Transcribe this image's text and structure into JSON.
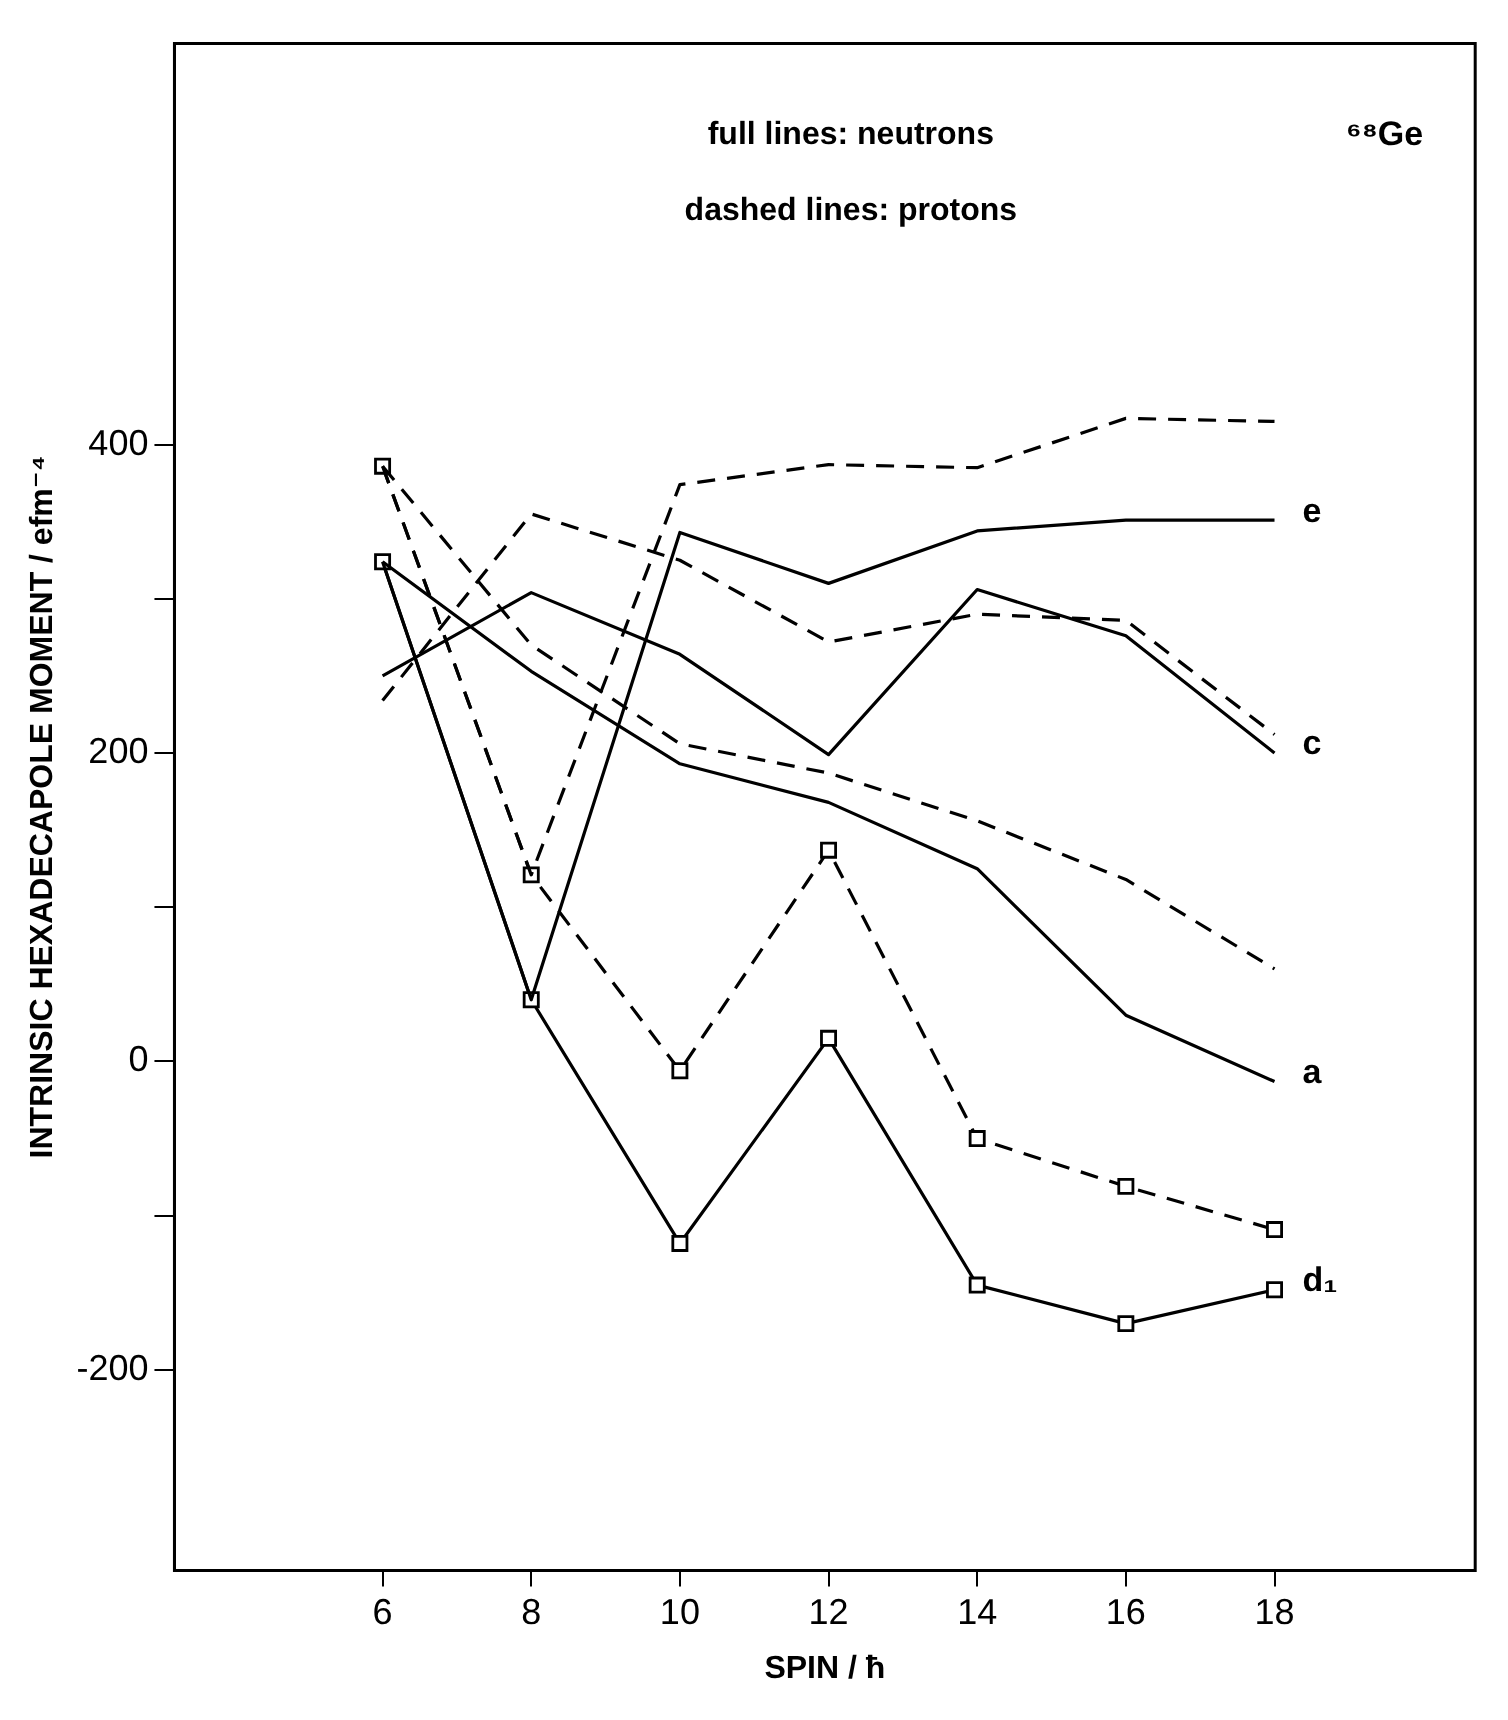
{
  "chart_data": {
    "type": "line",
    "title": "⁶⁸Ge",
    "xlabel": "SPIN / ħ",
    "ylabel": "INTRINSIC HEXADECAPOLE MOMENT / efm⁻⁴",
    "annotations": [
      "full lines: neutrons",
      "dashed lines: protons"
    ],
    "x": [
      6,
      8,
      10,
      12,
      14,
      16,
      18
    ],
    "series": [
      {
        "name": "e",
        "color": "#000000",
        "line_style": "solid",
        "marker": "none",
        "values": [
          324,
          40,
          343,
          310,
          344,
          351,
          351
        ]
      },
      {
        "color": "#000000",
        "line_style": "dashed",
        "marker": "none",
        "values": [
          386,
          121,
          374,
          387,
          385,
          417,
          415
        ]
      },
      {
        "name": "c",
        "color": "#000000",
        "line_style": "solid",
        "marker": "none",
        "values": [
          250,
          304,
          264,
          199,
          306,
          276,
          200
        ]
      },
      {
        "color": "#000000",
        "line_style": "dashed",
        "marker": "none",
        "values": [
          234,
          355,
          325,
          272,
          290,
          286,
          212
        ]
      },
      {
        "name": "a",
        "color": "#000000",
        "line_style": "solid",
        "marker": "none",
        "values": [
          324,
          253,
          193,
          168,
          125,
          30,
          -13
        ]
      },
      {
        "color": "#000000",
        "line_style": "dashed",
        "marker": "none",
        "values": [
          386,
          270,
          206,
          187,
          156,
          118,
          60
        ]
      },
      {
        "name": "d₁",
        "color": "#000000",
        "line_style": "solid",
        "marker": "square",
        "values": [
          324,
          40,
          -118,
          15,
          -145,
          -170,
          -148
        ]
      },
      {
        "color": "#000000",
        "line_style": "dashed",
        "marker": "square",
        "values": [
          386,
          121,
          -6,
          137,
          -50,
          -81,
          -109
        ]
      }
    ],
    "xlim": [
      3.2,
      20.7
    ],
    "xticks": [
      6,
      8,
      10,
      12,
      14,
      16,
      18
    ],
    "ylim": [
      -330,
      660
    ],
    "yticks": [
      -200,
      {
        "value": -100,
        "label": null
      },
      0,
      {
        "value": 100,
        "label": null
      },
      200,
      {
        "value": 300,
        "label": null
      },
      400
    ],
    "grid": false,
    "legend": false
  }
}
